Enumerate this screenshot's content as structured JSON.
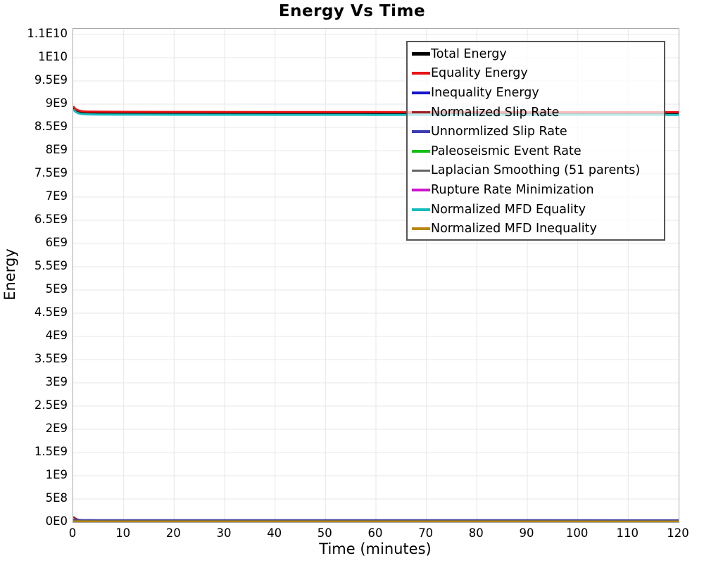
{
  "title": "Energy Vs Time",
  "colors": {
    "background": "#ffffff",
    "text": "#000000",
    "plot_border": "#a8a8a8",
    "gridline": "#e7e7e7",
    "legend_border": "#555555",
    "legend_background": "rgba(255,255,255,0.72)"
  },
  "chart_data": {
    "type": "line",
    "title": "Energy Vs Time",
    "xlabel": "Time (minutes)",
    "ylabel": "Energy",
    "xlim": [
      0,
      120
    ],
    "ylim": [
      0,
      11000000000.0
    ],
    "grid": true,
    "legend_position": "upper-right-inset",
    "x_ticks": [
      "0",
      "10",
      "20",
      "30",
      "40",
      "50",
      "60",
      "70",
      "80",
      "90",
      "100",
      "110",
      "120"
    ],
    "y_ticks": [
      "0E0",
      "5E8",
      "1E9",
      "1.5E9",
      "2E9",
      "2.5E9",
      "3E9",
      "3.5E9",
      "4E9",
      "4.5E9",
      "5E9",
      "5.5E9",
      "6E9",
      "6.5E9",
      "7E9",
      "7.5E9",
      "8E9",
      "8.5E9",
      "9E9",
      "9.5E9",
      "1E10",
      "1.1E10"
    ],
    "series": [
      {
        "name": "Total Energy",
        "color": "#000000",
        "line_width": 4,
        "points": [
          [
            0,
            8930000000.0
          ],
          [
            0.5,
            8870000000.0
          ],
          [
            1,
            8845000000.0
          ],
          [
            1.5,
            8832000000.0
          ],
          [
            2,
            8825000000.0
          ],
          [
            3,
            8820000000.0
          ],
          [
            5,
            8817000000.0
          ],
          [
            10,
            8814000000.0
          ],
          [
            20,
            8812000000.0
          ],
          [
            40,
            8810000000.0
          ],
          [
            60,
            8809000000.0
          ],
          [
            80,
            8808000000.0
          ],
          [
            100,
            8808000000.0
          ],
          [
            120,
            8807000000.0
          ]
        ]
      },
      {
        "name": "Equality Energy",
        "color": "#e81313",
        "line_width": 3,
        "points": [
          [
            0,
            8950000000.0
          ],
          [
            0.5,
            8890000000.0
          ],
          [
            1,
            8865000000.0
          ],
          [
            1.5,
            8852000000.0
          ],
          [
            2,
            8845000000.0
          ],
          [
            3,
            8840000000.0
          ],
          [
            5,
            8837000000.0
          ],
          [
            10,
            8834000000.0
          ],
          [
            20,
            8832000000.0
          ],
          [
            40,
            8830000000.0
          ],
          [
            60,
            8829000000.0
          ],
          [
            80,
            8828000000.0
          ],
          [
            100,
            8828000000.0
          ],
          [
            120,
            8827000000.0
          ]
        ]
      },
      {
        "name": "Inequality Energy",
        "color": "#1414cc",
        "line_width": 3,
        "points": [
          [
            0,
            6000000.0
          ],
          [
            5,
            5000000.0
          ],
          [
            120,
            4000000.0
          ]
        ]
      },
      {
        "name": "Normalized Slip Rate",
        "color": "#a02020",
        "line_width": 2.5,
        "points": [
          [
            0,
            115000000.0
          ],
          [
            0.5,
            75000000.0
          ],
          [
            1,
            55000000.0
          ],
          [
            2,
            40000000.0
          ],
          [
            3,
            32000000.0
          ],
          [
            5,
            28000000.0
          ],
          [
            10,
            25000000.0
          ],
          [
            60,
            23000000.0
          ],
          [
            120,
            22000000.0
          ]
        ]
      },
      {
        "name": "Unnormlized Slip Rate",
        "color": "#3c3cb4",
        "line_width": 2.5,
        "points": [
          [
            0,
            55000000.0
          ],
          [
            1,
            50000000.0
          ],
          [
            5,
            46000000.0
          ],
          [
            60,
            45000000.0
          ],
          [
            120,
            44000000.0
          ]
        ]
      },
      {
        "name": "Paleoseismic Event Rate",
        "color": "#15c015",
        "line_width": 2.5,
        "points": [
          [
            0,
            8000000.0
          ],
          [
            5,
            7000000.0
          ],
          [
            120,
            6000000.0
          ]
        ]
      },
      {
        "name": "Laplacian Smoothing (51 parents)",
        "color": "#666666",
        "line_width": 2.5,
        "points": [
          [
            0,
            32000000.0
          ],
          [
            5,
            31000000.0
          ],
          [
            120,
            30000000.0
          ]
        ]
      },
      {
        "name": "Rupture Rate Minimization",
        "color": "#cc15cc",
        "line_width": 2.5,
        "points": [
          [
            0,
            4000000.0
          ],
          [
            5,
            3500000.0
          ],
          [
            120,
            3000000.0
          ]
        ]
      },
      {
        "name": "Normalized MFD Equality",
        "color": "#16bcbc",
        "line_width": 3,
        "points": [
          [
            0,
            8885000000.0
          ],
          [
            0.5,
            8830000000.0
          ],
          [
            1,
            8805000000.0
          ],
          [
            1.5,
            8793000000.0
          ],
          [
            2,
            8786000000.0
          ],
          [
            3,
            8781000000.0
          ],
          [
            5,
            8778000000.0
          ],
          [
            10,
            8775000000.0
          ],
          [
            20,
            8773000000.0
          ],
          [
            40,
            8771000000.0
          ],
          [
            60,
            8770000000.0
          ],
          [
            80,
            8769000000.0
          ],
          [
            100,
            8769000000.0
          ],
          [
            120,
            8768000000.0
          ]
        ]
      },
      {
        "name": "Normalized MFD Inequality",
        "color": "#b8860b",
        "line_width": 2.5,
        "points": [
          [
            0,
            16000000.0
          ],
          [
            5,
            14000000.0
          ],
          [
            120,
            12000000.0
          ]
        ]
      }
    ]
  }
}
